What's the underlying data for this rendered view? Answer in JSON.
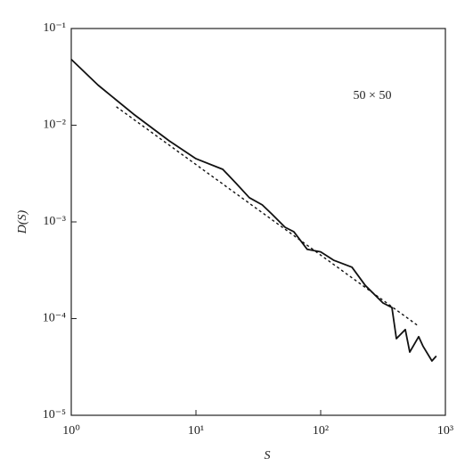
{
  "chart_data": {
    "type": "line",
    "x_label": "S",
    "y_label": "D(S)",
    "annotation": "50 × 50",
    "log_x": true,
    "log_y": true,
    "grid": false,
    "xlim": [
      1,
      1000
    ],
    "xticks": [
      {
        "value": 1,
        "label": "10⁰"
      },
      {
        "value": 10,
        "label": "10¹"
      },
      {
        "value": 100,
        "label": "10²"
      },
      {
        "value": 1000,
        "label": "10³"
      }
    ],
    "ylim": [
      1e-05,
      0.1
    ],
    "yticks": [
      {
        "value": 1e-05,
        "label": "10⁻⁵"
      },
      {
        "value": 0.0001,
        "label": "10⁻⁴"
      },
      {
        "value": 0.001,
        "label": "10⁻³"
      },
      {
        "value": 0.01,
        "label": "10⁻²"
      },
      {
        "value": 0.1,
        "label": "10⁻¹"
      }
    ],
    "series": [
      {
        "color": "#111111",
        "style": "solid",
        "x": [
          1,
          1.64,
          3.16,
          6.1,
          10,
          16.4,
          21,
          26.8,
          34,
          40.5,
          51.8,
          61,
          78,
          100,
          128,
          178,
          228,
          316,
          373,
          405,
          477,
          518,
          611,
          661,
          780,
          846
        ],
        "values": [
          0.048,
          0.026,
          0.013,
          0.0069,
          0.0045,
          0.0035,
          0.0025,
          0.00178,
          0.0015,
          0.00121,
          0.00088,
          0.00079,
          0.00052,
          0.00049,
          0.0004,
          0.00034,
          0.00022,
          0.000145,
          0.00013,
          6.2e-05,
          7.7e-05,
          4.5e-05,
          6.5e-05,
          5.2e-05,
          3.65e-05,
          4.1e-05
        ]
      },
      {
        "color": "#111111",
        "style": "dashed",
        "x": [
          2.3,
          600
        ],
        "values": [
          0.0155,
          8.5e-05
        ]
      }
    ]
  }
}
